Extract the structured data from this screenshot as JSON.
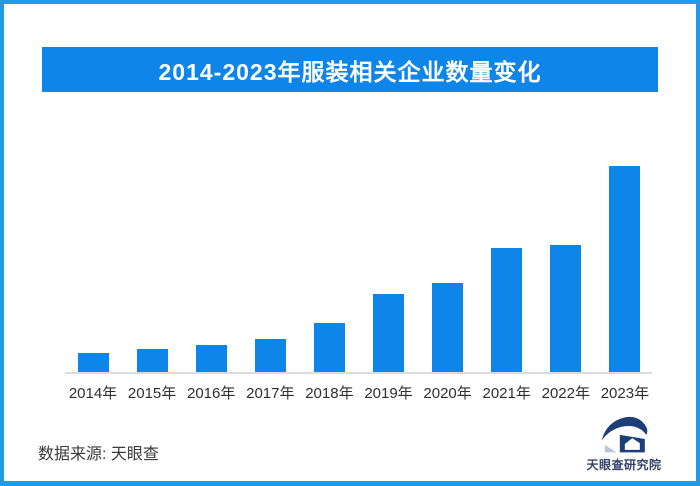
{
  "page": {
    "background": "#ffffff",
    "border_color": "#1e9ce6"
  },
  "header": {
    "title": "2014-2023年服装相关企业数量变化",
    "banner_color": "#0e85e9",
    "text_color": "#ffffff"
  },
  "chart_data": {
    "type": "bar",
    "title": "2014-2023年服装相关企业数量变化",
    "categories": [
      "2014年",
      "2015年",
      "2016年",
      "2017年",
      "2018年",
      "2019年",
      "2020年",
      "2021年",
      "2022年",
      "2023年"
    ],
    "values": [
      9.2,
      11.1,
      13.1,
      16.2,
      23.7,
      37.8,
      43.1,
      60.0,
      61.7,
      100
    ],
    "value_units": "relative index (max = 100); no y-axis, gridlines or data labels shown",
    "xlabel": "",
    "ylabel": "",
    "ylim": [
      0,
      100
    ],
    "grid": "off",
    "legend": "none",
    "bar_color": "#0e85e9",
    "axis_line_color": "#dcdcdc",
    "tick_label_color": "#2f2f2f"
  },
  "footer": {
    "source_label": "数据来源: 天眼查"
  },
  "logo": {
    "name": "天眼查研究院",
    "text_color": "#33456b",
    "mark_color": "#1d3f79",
    "mark_accent_color": "#b9c7da"
  }
}
